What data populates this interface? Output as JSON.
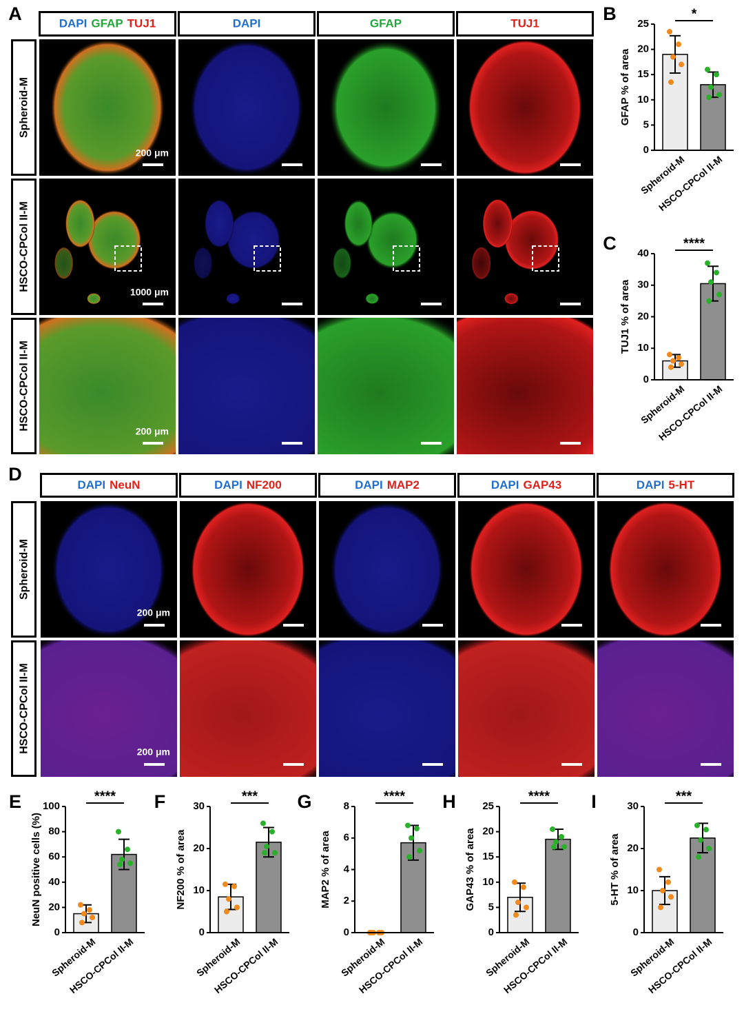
{
  "panel_letters": [
    "A",
    "B",
    "C",
    "D",
    "E",
    "F",
    "G",
    "H",
    "I"
  ],
  "panel_a": {
    "headers": [
      [
        {
          "text": "DAPI",
          "color": "#1f6fd1"
        },
        {
          "text": "GFAP",
          "color": "#22a83a"
        },
        {
          "text": "TUJ1",
          "color": "#e0201b"
        }
      ],
      [
        {
          "text": "DAPI",
          "color": "#1f6fd1"
        }
      ],
      [
        {
          "text": "GFAP",
          "color": "#22a83a"
        }
      ],
      [
        {
          "text": "TUJ1",
          "color": "#e0201b"
        }
      ]
    ],
    "rows": [
      "Spheroid-M",
      "HSCO-CPCol II-M",
      "HSCO-CPCol II-M"
    ],
    "scale_bars": [
      "200 μm",
      "1000 μm",
      "200 μm"
    ]
  },
  "panel_d": {
    "headers": [
      [
        {
          "text": "DAPI",
          "color": "#1f6fd1"
        },
        {
          "text": "NeuN",
          "color": "#e0201b"
        }
      ],
      [
        {
          "text": "DAPI",
          "color": "#1f6fd1"
        },
        {
          "text": "NF200",
          "color": "#e0201b"
        }
      ],
      [
        {
          "text": "DAPI",
          "color": "#1f6fd1"
        },
        {
          "text": "MAP2",
          "color": "#e0201b"
        }
      ],
      [
        {
          "text": "DAPI",
          "color": "#1f6fd1"
        },
        {
          "text": "GAP43",
          "color": "#e0201b"
        }
      ],
      [
        {
          "text": "DAPI",
          "color": "#1f6fd1"
        },
        {
          "text": "5-HT",
          "color": "#e0201b"
        }
      ]
    ],
    "rows": [
      "Spheroid-M",
      "HSCO-CPCol II-M"
    ],
    "scale_bars": [
      "200 μm",
      "200 μm"
    ]
  },
  "chart_data": [
    {
      "type": "bar",
      "ylabel": "GFAP % of area",
      "categories": [
        "Spheroid-M",
        "HSCO-CPCol II-M"
      ],
      "values": [
        19,
        13
      ],
      "errors": [
        3.7,
        2.5
      ],
      "points": [
        [
          23.5,
          21,
          18.5,
          17,
          13.5
        ],
        [
          16,
          15,
          12.5,
          11,
          10.5
        ]
      ],
      "colors": [
        "#ececec",
        "#8f8f8f"
      ],
      "point_colors": [
        "#f08a1c",
        "#2bb02b"
      ],
      "ylim": [
        0,
        25
      ],
      "yticks": [
        0,
        5,
        10,
        15,
        20,
        25
      ],
      "significance": "*"
    },
    {
      "type": "bar",
      "ylabel": "TUJ1 % of area",
      "categories": [
        "Spheroid-M",
        "HSCO-CPCol II-M"
      ],
      "values": [
        6,
        30.5
      ],
      "errors": [
        2,
        5.5
      ],
      "points": [
        [
          8,
          7,
          6,
          5,
          4
        ],
        [
          37,
          34,
          31,
          27,
          25
        ]
      ],
      "colors": [
        "#ececec",
        "#8f8f8f"
      ],
      "point_colors": [
        "#f08a1c",
        "#2bb02b"
      ],
      "ylim": [
        0,
        40
      ],
      "yticks": [
        0,
        10,
        20,
        30,
        40
      ],
      "significance": "****"
    },
    {
      "type": "bar",
      "ylabel": "NeuN positive cells (%)",
      "categories": [
        "Spheroid-M",
        "HSCO-CPCol II-M"
      ],
      "values": [
        15,
        62
      ],
      "errors": [
        7,
        12
      ],
      "points": [
        [
          22,
          18,
          15,
          12,
          8
        ],
        [
          80,
          66,
          58,
          55,
          54
        ]
      ],
      "colors": [
        "#ececec",
        "#8f8f8f"
      ],
      "point_colors": [
        "#f08a1c",
        "#2bb02b"
      ],
      "ylim": [
        0,
        100
      ],
      "yticks": [
        0,
        20,
        40,
        60,
        80,
        100
      ],
      "significance": "****"
    },
    {
      "type": "bar",
      "ylabel": "NF200 % of  area",
      "categories": [
        "Spheroid-M",
        "HSCO-CPCol II-M"
      ],
      "values": [
        8.5,
        21.5
      ],
      "errors": [
        3,
        3.5
      ],
      "points": [
        [
          11.5,
          11,
          8,
          6,
          5
        ],
        [
          26,
          24,
          20.5,
          19,
          19
        ]
      ],
      "colors": [
        "#ececec",
        "#8f8f8f"
      ],
      "point_colors": [
        "#f08a1c",
        "#2bb02b"
      ],
      "ylim": [
        0,
        30
      ],
      "yticks": [
        0,
        10,
        20,
        30
      ],
      "significance": "***"
    },
    {
      "type": "bar",
      "ylabel": "MAP2 % of area",
      "categories": [
        "Spheroid-M",
        "HSCO-CPCol II-M"
      ],
      "values": [
        0,
        5.7
      ],
      "errors": [
        0,
        1.1
      ],
      "points": [
        [
          0,
          0,
          0,
          0,
          0
        ],
        [
          6.8,
          6.6,
          6,
          5.2,
          4.8
        ]
      ],
      "colors": [
        "#ececec",
        "#8f8f8f"
      ],
      "point_colors": [
        "#f08a1c",
        "#2bb02b"
      ],
      "ylim": [
        0,
        8
      ],
      "yticks": [
        0,
        2,
        4,
        6,
        8
      ],
      "significance": "****"
    },
    {
      "type": "bar",
      "ylabel": "GAP43 % of area",
      "categories": [
        "Spheroid-M",
        "HSCO-CPCol II-M"
      ],
      "values": [
        7,
        18.5
      ],
      "errors": [
        2.8,
        2
      ],
      "points": [
        [
          10,
          9,
          6,
          5,
          3.5
        ],
        [
          20.5,
          19,
          18,
          17,
          17
        ]
      ],
      "colors": [
        "#ececec",
        "#8f8f8f"
      ],
      "point_colors": [
        "#f08a1c",
        "#2bb02b"
      ],
      "ylim": [
        0,
        25
      ],
      "yticks": [
        0,
        5,
        10,
        15,
        20,
        25
      ],
      "significance": "****"
    },
    {
      "type": "bar",
      "ylabel": "5-HT % of area",
      "categories": [
        "Spheroid-M",
        "HSCO-CPCol II-M"
      ],
      "values": [
        10,
        22.5
      ],
      "errors": [
        3.3,
        3.5
      ],
      "points": [
        [
          15,
          12,
          10,
          8.5,
          6
        ],
        [
          25.5,
          24.5,
          22,
          20,
          18
        ]
      ],
      "colors": [
        "#ececec",
        "#8f8f8f"
      ],
      "point_colors": [
        "#f08a1c",
        "#2bb02b"
      ],
      "ylim": [
        0,
        30
      ],
      "yticks": [
        0,
        10,
        20,
        30
      ],
      "significance": "***"
    }
  ]
}
